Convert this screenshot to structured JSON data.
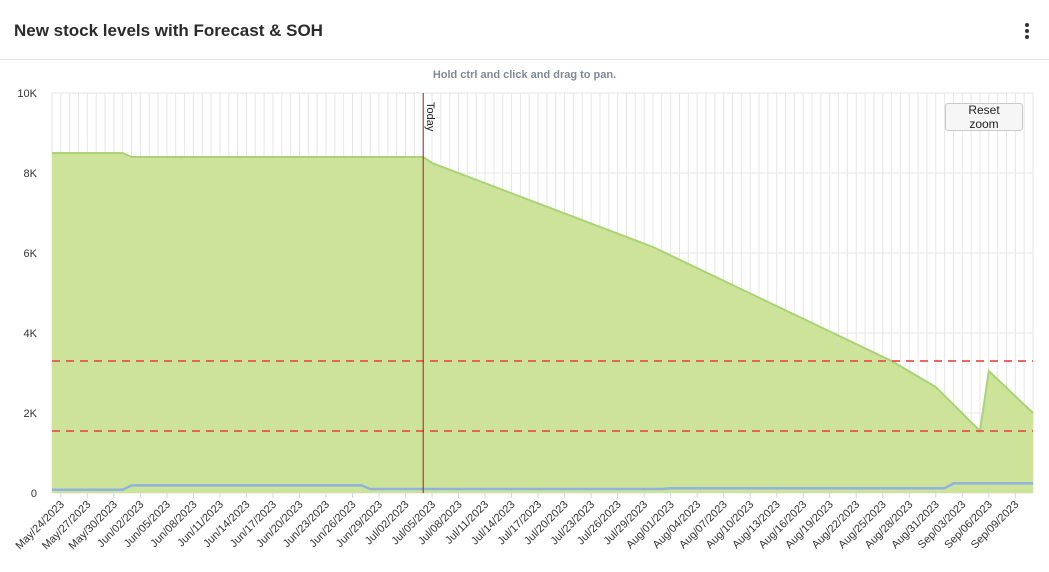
{
  "header": {
    "title": "New stock levels with Forecast & SOH",
    "menu_icon": "more-vertical-icon"
  },
  "chart_hint": "Hold ctrl and click and drag to pan.",
  "reset_zoom_label": "Reset zoom",
  "today_label": "Today",
  "colors": {
    "area_fill": "#cde39a",
    "area_line": "#a9d376",
    "soh_line": "#8fb3dc",
    "threshold_line": "#e8504a",
    "today_line": "#a02020"
  },
  "chart_data": {
    "type": "area",
    "ylim": [
      0,
      10000
    ],
    "yticks": [
      {
        "value": 0,
        "label": "0"
      },
      {
        "value": 2000,
        "label": "2K"
      },
      {
        "value": 4000,
        "label": "4K"
      },
      {
        "value": 6000,
        "label": "6K"
      },
      {
        "value": 8000,
        "label": "8K"
      },
      {
        "value": 10000,
        "label": "10K"
      }
    ],
    "xlim": [
      "2023-05-23",
      "2023-09-11"
    ],
    "xtick_labels": [
      "May/24/2023",
      "May/27/2023",
      "May/30/2023",
      "Jun/02/2023",
      "Jun/05/2023",
      "Jun/08/2023",
      "Jun/11/2023",
      "Jun/14/2023",
      "Jun/17/2023",
      "Jun/20/2023",
      "Jun/23/2023",
      "Jun/26/2023",
      "Jun/29/2023",
      "Jul/02/2023",
      "Jul/05/2023",
      "Jul/08/2023",
      "Jul/11/2023",
      "Jul/14/2023",
      "Jul/17/2023",
      "Jul/20/2023",
      "Jul/23/2023",
      "Jul/26/2023",
      "Jul/29/2023",
      "Aug/01/2023",
      "Aug/04/2023",
      "Aug/07/2023",
      "Aug/10/2023",
      "Aug/13/2023",
      "Aug/16/2023",
      "Aug/19/2023",
      "Aug/22/2023",
      "Aug/25/2023",
      "Aug/28/2023",
      "Aug/31/2023",
      "Sep/03/2023",
      "Sep/06/2023",
      "Sep/09/2023"
    ],
    "grid": true,
    "today": "2023-07-04",
    "thresholds": [
      3300,
      1550
    ],
    "series": [
      {
        "kind": "area",
        "points": [
          [
            "2023-05-23",
            8500
          ],
          [
            "2023-05-31",
            8500
          ],
          [
            "2023-06-01",
            8400
          ],
          [
            "2023-07-04",
            8400
          ],
          [
            "2023-07-05",
            8250
          ],
          [
            "2023-07-30",
            6150
          ],
          [
            "2023-08-26",
            3300
          ],
          [
            "2023-08-31",
            2650
          ],
          [
            "2023-09-05",
            1550
          ],
          [
            "2023-09-06",
            3050
          ],
          [
            "2023-09-11",
            2000
          ]
        ]
      },
      {
        "kind": "line",
        "points": [
          [
            "2023-05-23",
            80
          ],
          [
            "2023-05-31",
            80
          ],
          [
            "2023-06-01",
            190
          ],
          [
            "2023-06-27",
            190
          ],
          [
            "2023-06-28",
            100
          ],
          [
            "2023-07-31",
            100
          ],
          [
            "2023-08-01",
            120
          ],
          [
            "2023-09-01",
            120
          ],
          [
            "2023-09-02",
            240
          ],
          [
            "2023-09-11",
            240
          ]
        ]
      }
    ]
  }
}
